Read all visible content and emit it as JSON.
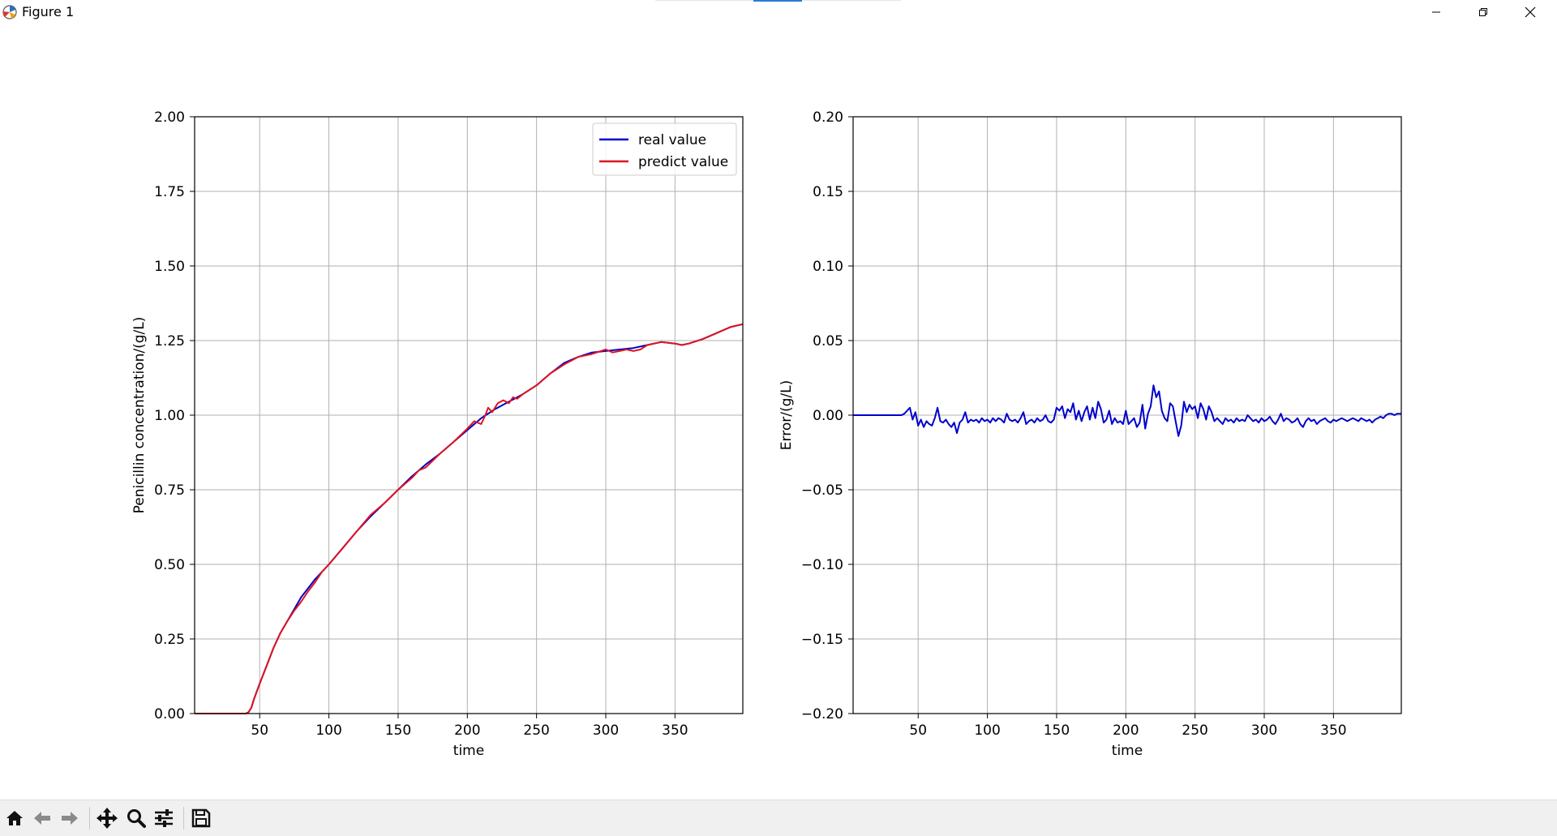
{
  "window": {
    "title": "Figure 1",
    "icons": {
      "app": "matplotlib-icon",
      "minimize": "minimize-icon",
      "restore": "restore-icon",
      "close": "close-icon"
    }
  },
  "toolbar": {
    "buttons": [
      {
        "name": "home-button",
        "icon": "home-icon"
      },
      {
        "name": "back-button",
        "icon": "arrow-left-icon"
      },
      {
        "name": "forward-button",
        "icon": "arrow-right-icon"
      },
      {
        "name": "pan-button",
        "icon": "move-icon"
      },
      {
        "name": "zoom-button",
        "icon": "search-icon"
      },
      {
        "name": "configure-subplots-button",
        "icon": "sliders-icon"
      },
      {
        "name": "save-button",
        "icon": "floppy-disk-icon"
      }
    ]
  },
  "chart_data": [
    {
      "type": "line",
      "xlabel": "time",
      "ylabel": "Penicillin concentration/(g/L)",
      "xlim": [
        3,
        399
      ],
      "ylim": [
        0.0,
        2.0
      ],
      "xticks": [
        50,
        100,
        150,
        200,
        250,
        300,
        350
      ],
      "xtick_labels": [
        "50",
        "100",
        "150",
        "200",
        "250",
        "300",
        "350"
      ],
      "yticks": [
        0.0,
        0.25,
        0.5,
        0.75,
        1.0,
        1.25,
        1.5,
        1.75,
        2.0
      ],
      "ytick_labels": [
        "0.00",
        "0.25",
        "0.50",
        "0.75",
        "1.00",
        "1.25",
        "1.50",
        "1.75",
        "2.00"
      ],
      "grid": true,
      "legend_position": "top-right",
      "series": [
        {
          "name": "real value",
          "color": "#0000cc",
          "x": [
            3,
            40,
            42,
            44,
            46,
            50,
            55,
            60,
            65,
            70,
            80,
            90,
            100,
            110,
            120,
            130,
            140,
            150,
            160,
            170,
            180,
            190,
            200,
            210,
            220,
            230,
            240,
            250,
            260,
            270,
            280,
            290,
            300,
            310,
            320,
            330,
            340,
            350,
            355,
            360,
            370,
            380,
            390,
            399
          ],
          "y": [
            0.0,
            0.0,
            0.005,
            0.02,
            0.05,
            0.1,
            0.16,
            0.22,
            0.27,
            0.31,
            0.39,
            0.45,
            0.5,
            0.555,
            0.61,
            0.66,
            0.705,
            0.75,
            0.795,
            0.835,
            0.87,
            0.91,
            0.95,
            0.99,
            1.02,
            1.045,
            1.07,
            1.1,
            1.14,
            1.175,
            1.195,
            1.21,
            1.215,
            1.22,
            1.225,
            1.235,
            1.245,
            1.24,
            1.235,
            1.24,
            1.255,
            1.275,
            1.295,
            1.305
          ]
        },
        {
          "name": "predict value",
          "color": "#e0141e",
          "x": [
            3,
            40,
            42,
            44,
            46,
            50,
            55,
            60,
            65,
            70,
            75,
            80,
            85,
            90,
            95,
            100,
            110,
            120,
            130,
            140,
            150,
            160,
            165,
            170,
            180,
            190,
            200,
            205,
            210,
            213,
            215,
            218,
            222,
            226,
            230,
            233,
            236,
            240,
            250,
            260,
            270,
            280,
            290,
            300,
            305,
            310,
            315,
            320,
            325,
            330,
            340,
            350,
            355,
            360,
            370,
            380,
            390,
            399
          ],
          "y": [
            0.0,
            0.0,
            0.005,
            0.02,
            0.05,
            0.1,
            0.16,
            0.22,
            0.27,
            0.31,
            0.345,
            0.375,
            0.41,
            0.44,
            0.475,
            0.5,
            0.555,
            0.61,
            0.665,
            0.705,
            0.75,
            0.79,
            0.815,
            0.825,
            0.87,
            0.91,
            0.955,
            0.98,
            0.97,
            1.0,
            1.025,
            1.01,
            1.04,
            1.05,
            1.04,
            1.06,
            1.055,
            1.07,
            1.1,
            1.14,
            1.17,
            1.195,
            1.205,
            1.22,
            1.21,
            1.215,
            1.22,
            1.215,
            1.22,
            1.235,
            1.245,
            1.24,
            1.235,
            1.24,
            1.255,
            1.275,
            1.295,
            1.305
          ]
        }
      ]
    },
    {
      "type": "line",
      "xlabel": "time",
      "ylabel": "Error/(g/L)",
      "xlim": [
        3,
        399
      ],
      "ylim": [
        -0.2,
        0.2
      ],
      "xticks": [
        50,
        100,
        150,
        200,
        250,
        300,
        350
      ],
      "xtick_labels": [
        "50",
        "100",
        "150",
        "200",
        "250",
        "300",
        "350"
      ],
      "yticks": [
        -0.2,
        -0.15,
        -0.1,
        -0.05,
        0.0,
        0.05,
        0.1,
        0.15,
        0.2
      ],
      "ytick_labels": [
        "−0.20",
        "−0.15",
        "−0.10",
        "−0.05",
        "0.00",
        "0.05",
        "0.10",
        "0.15",
        "0.20"
      ],
      "grid": true,
      "series": [
        {
          "color": "#0000cc",
          "x": [
            3,
            10,
            20,
            30,
            38,
            40,
            42,
            44,
            46,
            48,
            50,
            52,
            54,
            56,
            58,
            60,
            62,
            64,
            66,
            68,
            70,
            72,
            74,
            76,
            78,
            80,
            82,
            84,
            86,
            88,
            90,
            92,
            94,
            96,
            98,
            100,
            102,
            104,
            106,
            108,
            110,
            112,
            114,
            116,
            118,
            120,
            122,
            124,
            126,
            128,
            130,
            132,
            134,
            136,
            138,
            140,
            142,
            144,
            146,
            148,
            150,
            152,
            154,
            156,
            158,
            160,
            162,
            164,
            166,
            168,
            170,
            172,
            174,
            176,
            178,
            180,
            182,
            184,
            186,
            188,
            190,
            192,
            194,
            196,
            198,
            200,
            202,
            204,
            206,
            208,
            210,
            212,
            214,
            216,
            218,
            220,
            222,
            224,
            226,
            228,
            230,
            232,
            234,
            236,
            238,
            240,
            242,
            244,
            246,
            248,
            250,
            252,
            254,
            256,
            258,
            260,
            262,
            264,
            266,
            268,
            270,
            272,
            274,
            276,
            278,
            280,
            282,
            284,
            286,
            288,
            290,
            292,
            294,
            296,
            298,
            300,
            302,
            304,
            306,
            308,
            310,
            312,
            314,
            316,
            318,
            320,
            322,
            324,
            326,
            328,
            330,
            332,
            334,
            336,
            338,
            340,
            342,
            344,
            346,
            348,
            350,
            352,
            354,
            356,
            358,
            360,
            362,
            364,
            366,
            368,
            370,
            372,
            374,
            376,
            378,
            380,
            382,
            384,
            386,
            388,
            390,
            392,
            394,
            396,
            399
          ],
          "y": [
            0.0,
            0.0,
            0.0,
            0.0,
            0.0,
            0.001,
            0.003,
            0.005,
            -0.003,
            0.002,
            -0.007,
            -0.003,
            -0.008,
            -0.004,
            -0.006,
            -0.007,
            -0.002,
            0.005,
            -0.004,
            -0.005,
            -0.003,
            -0.006,
            -0.008,
            -0.005,
            -0.012,
            -0.005,
            -0.003,
            0.002,
            -0.005,
            -0.003,
            -0.004,
            -0.003,
            -0.005,
            -0.002,
            -0.004,
            -0.003,
            -0.005,
            -0.002,
            -0.004,
            -0.002,
            -0.003,
            -0.005,
            0.001,
            -0.003,
            -0.004,
            -0.003,
            -0.005,
            -0.002,
            0.002,
            -0.006,
            -0.004,
            -0.003,
            -0.005,
            -0.002,
            -0.004,
            -0.003,
            0.0,
            -0.004,
            -0.005,
            -0.003,
            0.005,
            0.003,
            0.006,
            -0.002,
            0.004,
            0.002,
            0.008,
            -0.003,
            0.003,
            -0.004,
            0.002,
            0.006,
            -0.003,
            0.005,
            -0.002,
            0.009,
            0.004,
            -0.005,
            -0.003,
            0.003,
            -0.006,
            -0.002,
            -0.005,
            -0.004,
            -0.006,
            0.003,
            -0.006,
            -0.004,
            -0.002,
            -0.008,
            -0.005,
            0.007,
            -0.009,
            0.001,
            0.006,
            0.02,
            0.012,
            0.016,
            0.003,
            -0.002,
            -0.004,
            0.008,
            0.006,
            -0.004,
            -0.014,
            -0.007,
            0.009,
            0.002,
            0.007,
            0.004,
            0.006,
            -0.002,
            0.008,
            0.004,
            -0.003,
            0.006,
            0.002,
            -0.004,
            -0.002,
            -0.004,
            -0.006,
            -0.002,
            -0.004,
            -0.003,
            -0.005,
            -0.002,
            -0.004,
            -0.003,
            -0.004,
            0.0,
            -0.002,
            -0.004,
            -0.003,
            -0.005,
            -0.002,
            -0.004,
            -0.003,
            -0.001,
            -0.004,
            -0.006,
            -0.003,
            0.001,
            -0.004,
            -0.002,
            -0.003,
            -0.005,
            -0.004,
            -0.002,
            -0.006,
            -0.008,
            -0.004,
            -0.002,
            -0.004,
            -0.003,
            -0.006,
            -0.004,
            -0.003,
            -0.002,
            -0.004,
            -0.005,
            -0.003,
            -0.004,
            -0.003,
            -0.002,
            -0.003,
            -0.004,
            -0.003,
            -0.002,
            -0.003,
            -0.004,
            -0.002,
            -0.003,
            -0.004,
            -0.003,
            -0.005,
            -0.003,
            -0.002,
            -0.001,
            -0.002,
            0.0,
            0.001,
            0.001,
            0.0,
            0.001,
            0.001
          ]
        }
      ]
    }
  ]
}
